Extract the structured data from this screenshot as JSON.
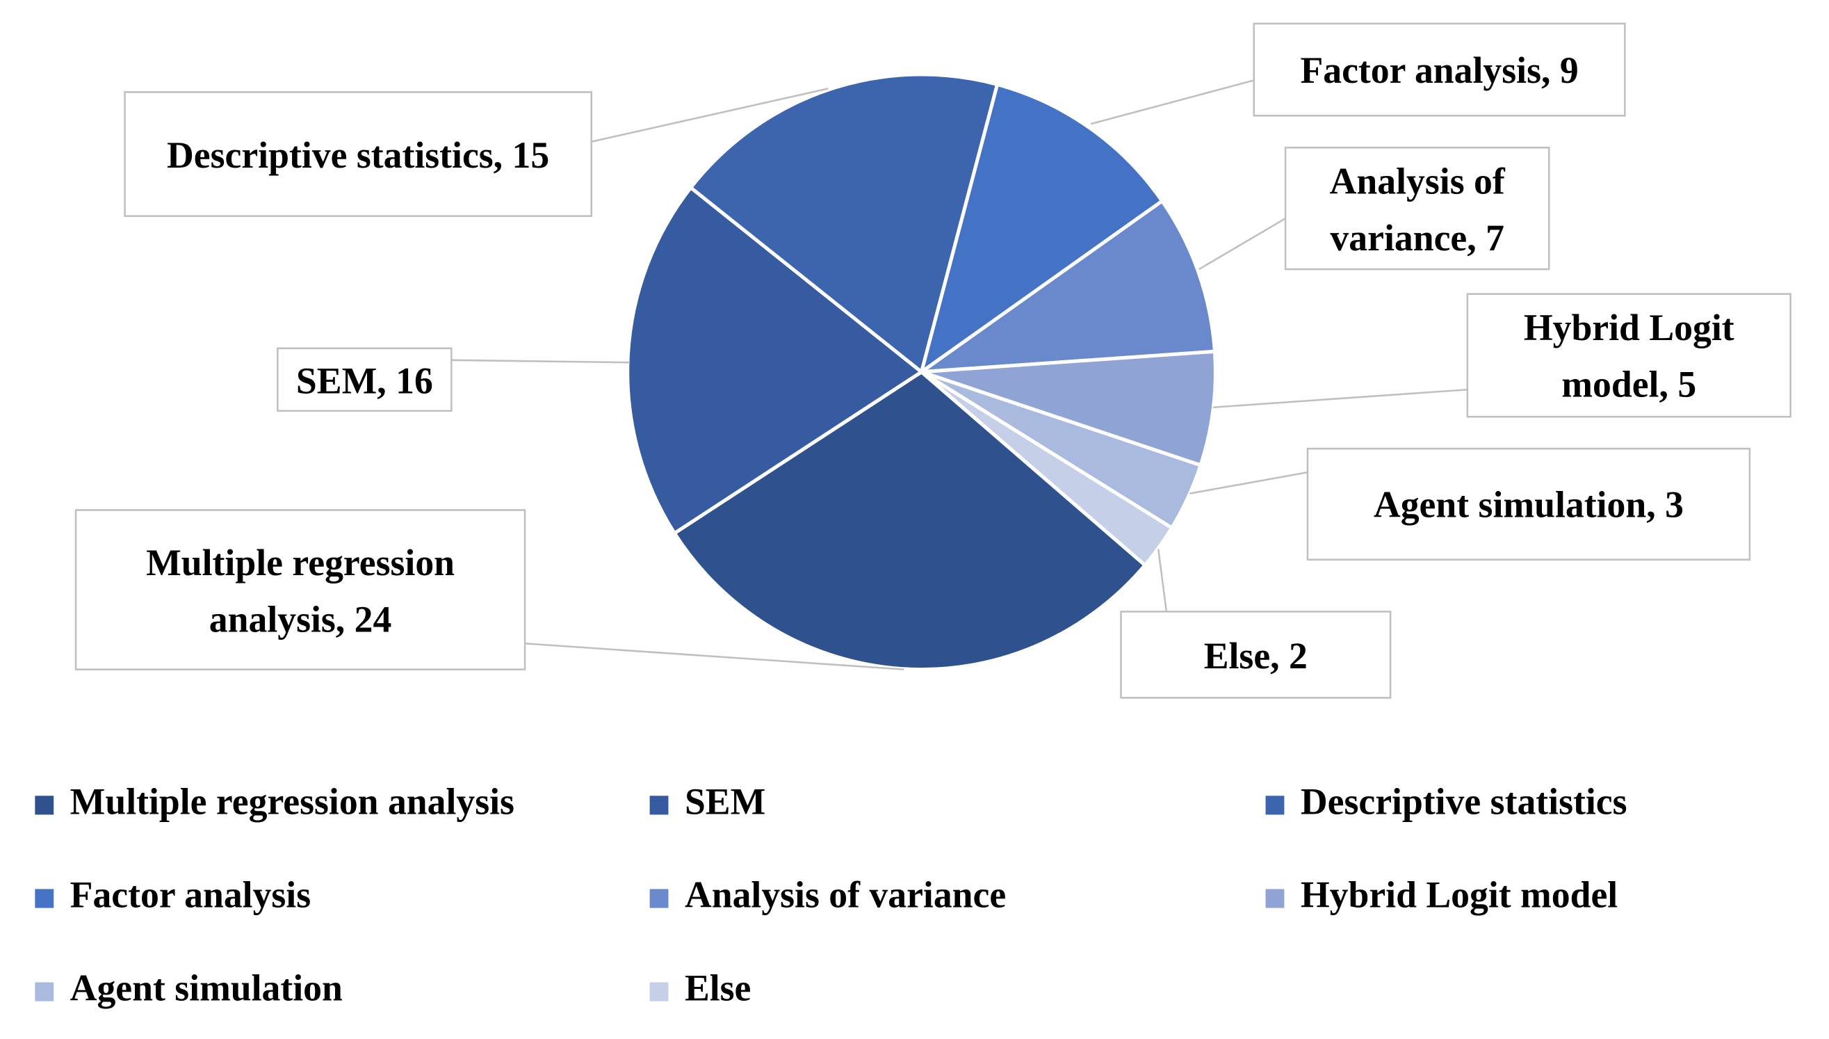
{
  "chart_data": {
    "type": "pie",
    "categories": [
      "Multiple regression analysis",
      "SEM",
      "Descriptive statistics",
      "Factor analysis",
      "Analysis of variance",
      "Hybrid Logit model",
      "Agent simulation",
      "Else"
    ],
    "values": [
      24,
      16,
      15,
      9,
      7,
      5,
      3,
      2
    ],
    "value_labels": [
      "Multiple regression analysis, 24",
      "SEM, 16",
      "Descriptive statistics, 15",
      "Factor analysis, 9",
      "Analysis of variance, 7",
      "Hybrid Logit model, 5",
      "Agent simulation, 3",
      "Else, 2"
    ],
    "colors": [
      "#2f528f",
      "#365ba0",
      "#3d65ae",
      "#4472c4",
      "#6a89cc",
      "#8fa4d4",
      "#aab9de",
      "#c5cfe8"
    ],
    "legend": "bottom"
  }
}
